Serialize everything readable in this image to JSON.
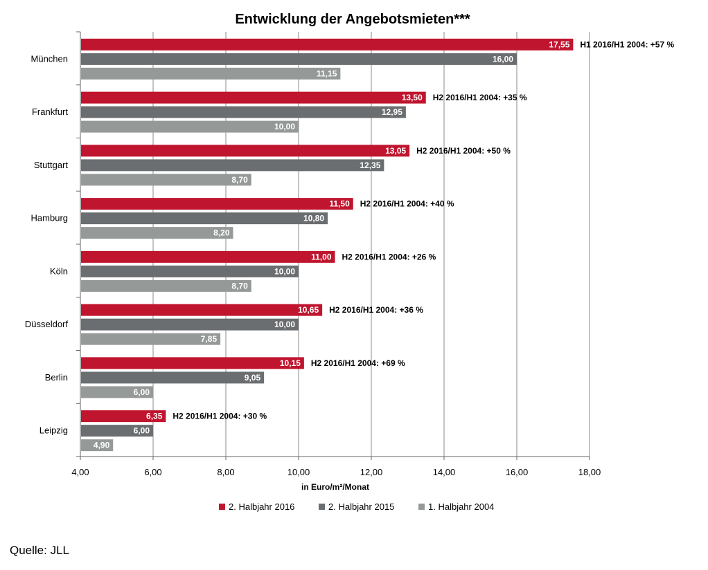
{
  "chart_data": {
    "type": "bar",
    "orientation": "horizontal",
    "title": "Entwicklung der Angebotsmieten***",
    "xlabel": "in Euro/m²/Monat",
    "xlim": [
      4,
      18
    ],
    "xticks": [
      "4,00",
      "6,00",
      "8,00",
      "10,00",
      "12,00",
      "14,00",
      "16,00",
      "18,00"
    ],
    "grid": true,
    "legend_position": "bottom",
    "categories": [
      "München",
      "Frankfurt",
      "Stuttgart",
      "Hamburg",
      "Köln",
      "Düsseldorf",
      "Berlin",
      "Leipzig"
    ],
    "series": [
      {
        "name": "2. Halbjahr 2016",
        "color": "#c0152f",
        "values": [
          17.55,
          13.5,
          13.05,
          11.5,
          11.0,
          10.65,
          10.15,
          6.35
        ],
        "labels": [
          "17,55",
          "13,50",
          "13,05",
          "11,50",
          "11,00",
          "10,65",
          "10,15",
          "6,35"
        ]
      },
      {
        "name": "2. Halbjahr 2015",
        "color": "#6b6e70",
        "values": [
          16.0,
          12.95,
          12.35,
          10.8,
          10.0,
          10.0,
          9.05,
          6.0
        ],
        "labels": [
          "16,00",
          "12,95",
          "12,35",
          "10,80",
          "10,00",
          "10,00",
          "9,05",
          "6,00"
        ]
      },
      {
        "name": "1. Halbjahr 2004",
        "color": "#959a99",
        "values": [
          11.15,
          10.0,
          8.7,
          8.2,
          8.7,
          7.85,
          6.0,
          4.9
        ],
        "labels": [
          "11,15",
          "10,00",
          "8,70",
          "8,20",
          "8,70",
          "7,85",
          "6,00",
          "4,90"
        ]
      }
    ],
    "annotations": [
      "H1 2016/H1 2004: +57 %",
      "H2 2016/H1 2004: +35 %",
      "H2 2016/H1 2004: +50 %",
      "H2 2016/H1 2004: +40 %",
      "H2 2016/H1 2004: +26 %",
      "H2 2016/H1 2004: +36 %",
      "H2 2016/H1 2004: +69 %",
      "H2 2016/H1 2004: +30 %"
    ]
  },
  "source": "Quelle: JLL"
}
